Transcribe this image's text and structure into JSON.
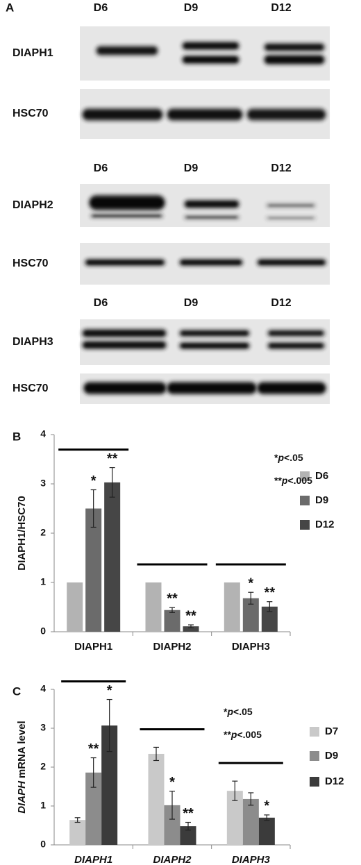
{
  "panel_a": {
    "label": "A",
    "blots": [
      {
        "lanes": [
          "D6",
          "D9",
          "D12"
        ],
        "rows": [
          "DIAPH1",
          "HSC70"
        ]
      },
      {
        "lanes": [
          "D6",
          "D9",
          "D12"
        ],
        "rows": [
          "DIAPH2",
          "HSC70"
        ]
      },
      {
        "lanes": [
          "D6",
          "D9",
          "D12"
        ],
        "rows": [
          "DIAPH3",
          "HSC70"
        ]
      }
    ]
  },
  "chart_data": [
    {
      "type": "bar",
      "label": "B",
      "y_label": {
        "text": "DIAPH1/HSC70"
      },
      "italic_categories": false,
      "categories": [
        "DIAPH1",
        "DIAPH2",
        "DIAPH3"
      ],
      "ylim": [
        0,
        4
      ],
      "yticks": [
        0,
        1,
        2,
        3,
        4
      ],
      "legend": "right",
      "series": [
        {
          "name": "D6",
          "color": "#b3b3b3",
          "values": [
            1,
            1,
            1
          ],
          "errors": [
            null,
            null,
            null
          ],
          "significance": [
            null,
            null,
            null
          ]
        },
        {
          "name": "D9",
          "color": "#6b6b6b",
          "values": [
            2.5,
            0.44,
            0.68
          ],
          "errors": [
            0.38,
            0.05,
            0.12
          ],
          "significance": [
            "*",
            "**",
            "*"
          ]
        },
        {
          "name": "D12",
          "color": "#464646",
          "values": [
            3.03,
            0.11,
            0.51
          ],
          "errors": [
            0.3,
            0.03,
            0.1
          ],
          "significance": [
            "**",
            "**",
            "**"
          ]
        }
      ],
      "annotations": [
        {
          "stars": "*",
          "p": "p",
          "rest": "<.05"
        },
        {
          "stars": "**",
          "p": "p",
          "rest": "<.005"
        }
      ]
    },
    {
      "type": "bar",
      "label": "C",
      "y_label": {
        "italic": "DIAPH",
        "text": "mRNA level"
      },
      "italic_categories": true,
      "categories": [
        "DIAPH1",
        "DIAPH2",
        "DIAPH3"
      ],
      "ylim": [
        0,
        4
      ],
      "yticks": [
        0,
        1,
        2,
        3,
        4
      ],
      "legend": "right",
      "series": [
        {
          "name": "D7",
          "color": "#c9c9c9",
          "values": [
            0.64,
            2.34,
            1.39
          ],
          "errors": [
            0.06,
            0.17,
            0.25
          ],
          "significance": [
            null,
            null,
            null
          ]
        },
        {
          "name": "D9",
          "color": "#8c8c8c",
          "values": [
            1.86,
            1.02,
            1.18
          ],
          "errors": [
            0.38,
            0.36,
            0.16
          ],
          "significance": [
            "**",
            "*",
            null
          ]
        },
        {
          "name": "D12",
          "color": "#3b3b3b",
          "values": [
            3.07,
            0.48,
            0.7
          ],
          "errors": [
            0.67,
            0.1,
            0.07
          ],
          "significance": [
            "*",
            "**",
            "*"
          ]
        }
      ],
      "annotations": [
        {
          "stars": "*",
          "p": "p",
          "rest": "<.05"
        },
        {
          "stars": "**",
          "p": "p",
          "rest": "<.005"
        }
      ]
    }
  ]
}
